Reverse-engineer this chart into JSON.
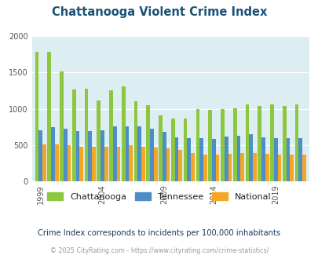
{
  "title": "Chattanooga Violent Crime Index",
  "years": [
    1999,
    2000,
    2001,
    2002,
    2003,
    2004,
    2005,
    2006,
    2007,
    2008,
    2009,
    2010,
    2012,
    2013,
    2014,
    2015,
    2016,
    2017,
    2018,
    2019,
    2020,
    2021
  ],
  "chattanooga": [
    1790,
    1790,
    1520,
    1270,
    1280,
    1110,
    1250,
    1310,
    1100,
    1050,
    910,
    870,
    870,
    1000,
    990,
    1000,
    1010,
    1060,
    1040,
    1060,
    1040,
    1060
  ],
  "tennessee": [
    700,
    750,
    720,
    690,
    695,
    700,
    760,
    760,
    760,
    730,
    680,
    610,
    600,
    590,
    580,
    620,
    630,
    650,
    610,
    595,
    600,
    600
  ],
  "national": [
    505,
    505,
    500,
    480,
    475,
    475,
    480,
    500,
    475,
    460,
    450,
    430,
    390,
    370,
    365,
    375,
    390,
    395,
    375,
    370,
    370,
    370
  ],
  "chattanooga_color": "#8dc63f",
  "tennessee_color": "#4d8ec9",
  "national_color": "#f5a623",
  "plot_bg": "#ddeef2",
  "legend_labels": [
    "Chattanooga",
    "Tennessee",
    "National"
  ],
  "subtitle": "Crime Index corresponds to incidents per 100,000 inhabitants",
  "footer": "© 2025 CityRating.com - https://www.cityrating.com/crime-statistics/",
  "ylim": [
    0,
    2000
  ],
  "yticks": [
    0,
    500,
    1000,
    1500,
    2000
  ],
  "xtick_years": [
    1999,
    2004,
    2009,
    2014,
    2019
  ]
}
